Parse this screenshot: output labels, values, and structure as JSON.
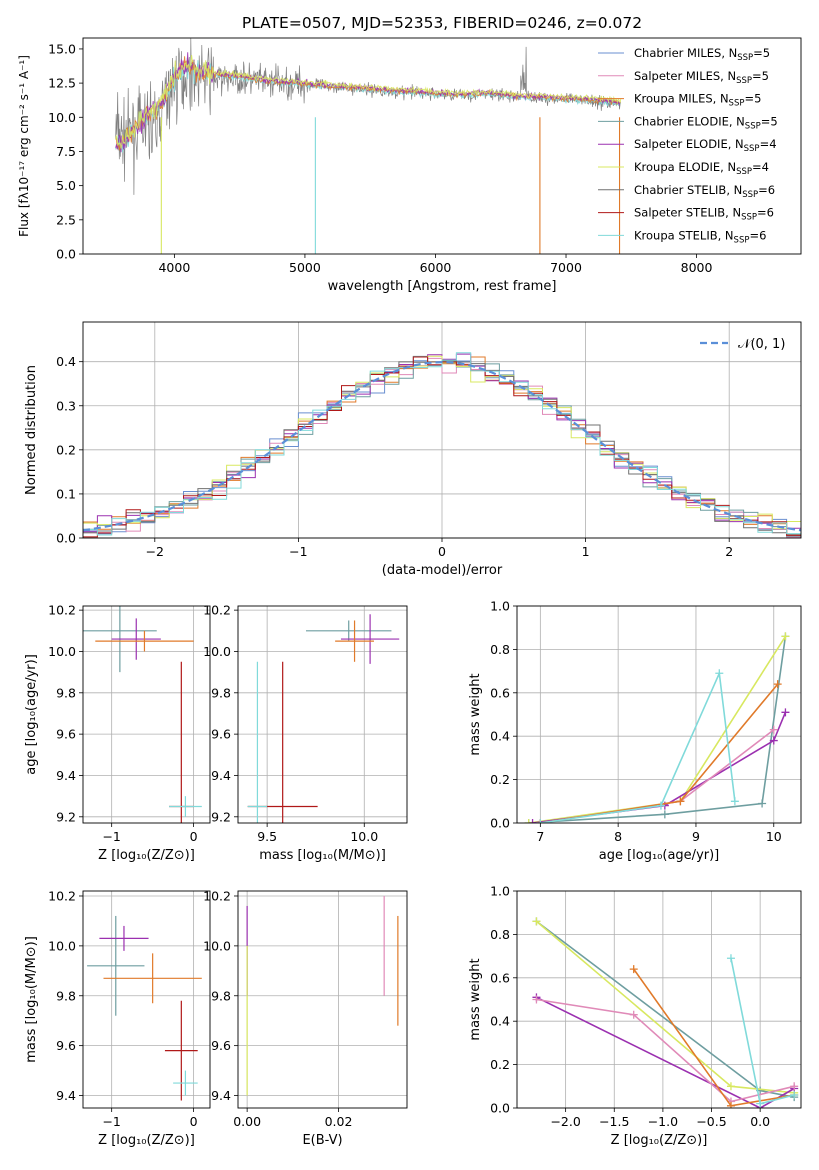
{
  "colors": [
    "#6a8fd0",
    "#e08ab8",
    "#e07a2a",
    "#6e9ea0",
    "#9b30b0",
    "#d8e860",
    "#707070",
    "#b01818",
    "#80dada"
  ],
  "chart_data": [
    {
      "type": "line",
      "title": "PLATE=0507, MJD=52353, FIBERID=0246, z=0.072",
      "xlabel": "wavelength [Angstrom, rest frame]",
      "ylabel": "Flux [fλ10⁻¹⁷ erg cm⁻² s⁻¹ A⁻¹]",
      "xlim": [
        3300,
        8800
      ],
      "ylim": [
        0,
        15.8
      ],
      "xticks": [
        "4000",
        "5000",
        "6000",
        "7000",
        "8000"
      ],
      "xtick_values": [
        4000,
        5000,
        6000,
        7000,
        8000
      ],
      "yticks": [
        "0.0",
        "2.5",
        "5.0",
        "7.5",
        "10.0",
        "12.5",
        "15.0"
      ],
      "ytick_values": [
        0,
        2.5,
        5,
        7.5,
        10,
        12.5,
        15
      ],
      "grid": false,
      "legend_position": "top-right",
      "legend": [
        {
          "label": "Chabrier MILES, N",
          "sub": "SSP",
          "tail": "=5"
        },
        {
          "label": "Salpeter MILES, N",
          "sub": "SSP",
          "tail": "=5"
        },
        {
          "label": "Kroupa MILES, N",
          "sub": "SSP",
          "tail": "=5"
        },
        {
          "label": "Chabrier ELODIE, N",
          "sub": "SSP",
          "tail": "=5"
        },
        {
          "label": "Salpeter ELODIE, N",
          "sub": "SSP",
          "tail": "=4"
        },
        {
          "label": "Kroupa ELODIE, N",
          "sub": "SSP",
          "tail": "=4"
        },
        {
          "label": "Chabrier STELIB, N",
          "sub": "SSP",
          "tail": "=6"
        },
        {
          "label": "Salpeter STELIB, N",
          "sub": "SSP",
          "tail": "=6"
        },
        {
          "label": "Kroupa STELIB, N",
          "sub": "SSP",
          "tail": "=6"
        }
      ],
      "series": [
        {
          "name": "data",
          "color": "#808080",
          "x": [
            3550,
            3600,
            3700,
            3800,
            3900,
            4000,
            4100,
            4200,
            4300,
            4500,
            4700,
            5000,
            5200,
            5500,
            5800,
            6000,
            6200,
            6400,
            6600,
            6800,
            7000,
            7200,
            7400
          ],
          "y": [
            9.0,
            8.5,
            9.0,
            9.5,
            10.5,
            12.5,
            13.3,
            13.0,
            12.8,
            12.8,
            12.6,
            12.4,
            12.3,
            12.0,
            11.8,
            11.7,
            11.6,
            11.7,
            11.5,
            11.4,
            11.3,
            11.2,
            11.0
          ]
        },
        {
          "name": "model",
          "color": "#80dada",
          "x": [
            3550,
            3600,
            3700,
            3800,
            3900,
            4000,
            4100,
            4200,
            4300,
            4500,
            4700,
            5000,
            5200,
            5500,
            5800,
            6000,
            6200,
            6400,
            6600,
            6800,
            7000,
            7200,
            7400
          ],
          "y": [
            8.3,
            8.0,
            9.3,
            10.3,
            11.0,
            13.0,
            13.8,
            13.3,
            13.2,
            13.0,
            12.7,
            12.5,
            12.3,
            12.1,
            11.9,
            11.8,
            11.7,
            11.8,
            11.6,
            11.5,
            11.4,
            11.3,
            11.1
          ]
        }
      ]
    },
    {
      "type": "line",
      "xlabel": "(data-model)/error",
      "ylabel": "Normed distribution",
      "xlim": [
        -2.5,
        2.5
      ],
      "ylim": [
        0,
        0.49
      ],
      "xticks": [
        "−2",
        "−1",
        "0",
        "1",
        "2"
      ],
      "xtick_values": [
        -2,
        -1,
        0,
        1,
        2
      ],
      "yticks": [
        "0.0",
        "0.1",
        "0.2",
        "0.3",
        "0.4"
      ],
      "ytick_values": [
        0,
        0.1,
        0.2,
        0.3,
        0.4
      ],
      "grid": true,
      "legend_position": "top-right",
      "legend": [
        "𝒩(0, 1)"
      ],
      "series": [
        {
          "name": "𝒩(0, 1)",
          "color": "#5a8fd8",
          "x": [
            -2.5,
            -2.0,
            -1.5,
            -1.0,
            -0.5,
            0.0,
            0.5,
            1.0,
            1.5,
            2.0,
            2.5
          ],
          "y": [
            0.018,
            0.054,
            0.13,
            0.242,
            0.352,
            0.399,
            0.352,
            0.242,
            0.13,
            0.054,
            0.018
          ]
        }
      ]
    },
    {
      "type": "scatter",
      "xlabel": "Z [log₁₀(Z/Z⊙)]",
      "ylabel": "age  [log₁₀(age/yr)]",
      "xlim": [
        -1.35,
        0.2
      ],
      "ylim": [
        9.17,
        10.22
      ],
      "xticks": [
        "−1",
        "0"
      ],
      "xtick_values": [
        -1,
        0
      ],
      "yticks": [
        "9.2",
        "9.4",
        "9.6",
        "9.8",
        "10.0",
        "10.2"
      ],
      "ytick_values": [
        9.2,
        9.4,
        9.6,
        9.8,
        10.0,
        10.2
      ],
      "grid": true,
      "points": [
        {
          "x": -0.9,
          "y": 10.1,
          "xerr": 0.45,
          "yerr": 0.2,
          "color": "#6e9ea0"
        },
        {
          "x": -0.7,
          "y": 10.06,
          "xerr": 0.3,
          "yerr": 0.1,
          "color": "#9b30b0"
        },
        {
          "x": -0.6,
          "y": 10.05,
          "xerr": 0.6,
          "yerr": 0.05,
          "color": "#e07a2a"
        },
        {
          "x": -0.15,
          "y": 9.25,
          "xerr": 0.15,
          "yerr": 0.7,
          "color": "#b01818"
        },
        {
          "x": -0.1,
          "y": 9.25,
          "xerr": 0.2,
          "yerr": 0.05,
          "color": "#80dada"
        }
      ]
    },
    {
      "type": "scatter",
      "xlabel": "mass [log₁₀(M/M⊙)]",
      "ylabel": "",
      "xlim": [
        9.35,
        10.22
      ],
      "ylim": [
        9.17,
        10.22
      ],
      "xticks": [
        "9.5",
        "10.0"
      ],
      "xtick_values": [
        9.5,
        10.0
      ],
      "yticks": [
        "9.2",
        "9.4",
        "9.6",
        "9.8",
        "10.0",
        "10.2"
      ],
      "ytick_values": [
        9.2,
        9.4,
        9.6,
        9.8,
        10.0,
        10.2
      ],
      "grid": true,
      "points": [
        {
          "x": 9.92,
          "y": 10.1,
          "xerr": 0.22,
          "yerr": 0.05,
          "color": "#6e9ea0"
        },
        {
          "x": 10.03,
          "y": 10.06,
          "xerr": 0.15,
          "yerr": 0.12,
          "color": "#9b30b0"
        },
        {
          "x": 9.95,
          "y": 10.05,
          "xerr": 0.1,
          "yerr": 0.1,
          "color": "#e07a2a"
        },
        {
          "x": 9.58,
          "y": 9.25,
          "xerr": 0.18,
          "yerr": 0.7,
          "color": "#b01818"
        },
        {
          "x": 9.45,
          "y": 9.25,
          "xerr": 0.05,
          "yerr": 0.7,
          "color": "#80dada"
        }
      ]
    },
    {
      "type": "line",
      "xlabel": "age  [log₁₀(age/yr)]",
      "ylabel": "mass weight",
      "xlim": [
        6.7,
        10.35
      ],
      "ylim": [
        0,
        1.0
      ],
      "xticks": [
        "7",
        "8",
        "9",
        "10"
      ],
      "xtick_values": [
        7,
        8,
        9,
        10
      ],
      "yticks": [
        "0.0",
        "0.2",
        "0.4",
        "0.6",
        "0.8",
        "1.0"
      ],
      "ytick_values": [
        0,
        0.2,
        0.4,
        0.6,
        0.8,
        1.0
      ],
      "grid": true,
      "series": [
        {
          "color": "#6e9ea0",
          "x": [
            6.85,
            8.6,
            9.85,
            10.15
          ],
          "y": [
            0.0,
            0.04,
            0.09,
            0.86
          ]
        },
        {
          "color": "#d8e860",
          "x": [
            6.85,
            8.8,
            10.15
          ],
          "y": [
            0.0,
            0.1,
            0.86
          ]
        },
        {
          "color": "#9b30b0",
          "x": [
            6.9,
            8.6,
            10.0,
            10.15
          ],
          "y": [
            0.0,
            0.08,
            0.38,
            0.51
          ]
        },
        {
          "color": "#e08ab8",
          "x": [
            7.0,
            8.8,
            10.0
          ],
          "y": [
            0.0,
            0.1,
            0.43
          ]
        },
        {
          "color": "#e07a2a",
          "x": [
            7.0,
            8.8,
            10.05
          ],
          "y": [
            0.0,
            0.1,
            0.64
          ]
        },
        {
          "color": "#80dada",
          "x": [
            7.0,
            8.55,
            9.3,
            9.5
          ],
          "y": [
            0.0,
            0.08,
            0.69,
            0.1
          ]
        }
      ]
    },
    {
      "type": "scatter",
      "xlabel": "Z [log₁₀(Z/Z⊙)]",
      "ylabel": "mass [log₁₀(M/M⊙)]",
      "xlim": [
        -1.35,
        0.2
      ],
      "ylim": [
        9.35,
        10.22
      ],
      "xticks": [
        "−1",
        "0"
      ],
      "xtick_values": [
        -1,
        0
      ],
      "yticks": [
        "9.4",
        "9.6",
        "9.8",
        "10.0",
        "10.2"
      ],
      "ytick_values": [
        9.4,
        9.6,
        9.8,
        10.0,
        10.2
      ],
      "grid": true,
      "points": [
        {
          "x": -0.95,
          "y": 9.92,
          "xerr": 0.35,
          "yerr": 0.2,
          "color": "#6e9ea0"
        },
        {
          "x": -0.85,
          "y": 10.03,
          "xerr": 0.3,
          "yerr": 0.05,
          "color": "#9b30b0"
        },
        {
          "x": -0.5,
          "y": 9.87,
          "xerr": 0.6,
          "yerr": 0.1,
          "color": "#e07a2a"
        },
        {
          "x": -0.15,
          "y": 9.58,
          "xerr": 0.2,
          "yerr": 0.2,
          "color": "#b01818"
        },
        {
          "x": -0.1,
          "y": 9.45,
          "xerr": 0.15,
          "yerr": 0.05,
          "color": "#80dada"
        }
      ]
    },
    {
      "type": "scatter",
      "xlabel": "E(B-V)",
      "ylabel": "",
      "xlim": [
        -0.002,
        0.035
      ],
      "ylim": [
        9.35,
        10.22
      ],
      "xticks": [
        "0.00",
        "0.02"
      ],
      "xtick_values": [
        0.0,
        0.02
      ],
      "yticks": [
        "9.4",
        "9.6",
        "9.8",
        "10.0",
        "10.2"
      ],
      "ytick_values": [
        9.4,
        9.6,
        9.8,
        10.0,
        10.2
      ],
      "grid": true,
      "points": [
        {
          "x": 0.0,
          "y": 9.98,
          "xerr": 0,
          "yerr": 0.18,
          "color": "#9b30b0"
        },
        {
          "x": 0.0,
          "y": 9.7,
          "xerr": 0,
          "yerr": 0.3,
          "color": "#d8e860"
        },
        {
          "x": 0.03,
          "y": 10.0,
          "xerr": 0,
          "yerr": 0.2,
          "color": "#e08ab8"
        },
        {
          "x": 0.033,
          "y": 9.9,
          "xerr": 0,
          "yerr": 0.22,
          "color": "#e07a2a"
        }
      ]
    },
    {
      "type": "line",
      "xlabel": "Z [log₁₀(Z/Z⊙)]",
      "ylabel": "mass weight",
      "xlim": [
        -2.5,
        0.42
      ],
      "ylim": [
        0,
        1.0
      ],
      "xticks": [
        "−2.0",
        "−1.5",
        "−1.0",
        "−0.5",
        "0.0"
      ],
      "xtick_values": [
        -2.0,
        -1.5,
        -1.0,
        -0.5,
        0.0
      ],
      "yticks": [
        "0.0",
        "0.2",
        "0.4",
        "0.6",
        "0.8",
        "1.0"
      ],
      "ytick_values": [
        0,
        0.2,
        0.4,
        0.6,
        0.8,
        1.0
      ],
      "grid": true,
      "series": [
        {
          "color": "#6e9ea0",
          "x": [
            -2.3,
            0.0,
            0.35
          ],
          "y": [
            0.86,
            0.08,
            0.05
          ]
        },
        {
          "color": "#d8e860",
          "x": [
            -2.3,
            -0.3,
            0.35
          ],
          "y": [
            0.86,
            0.1,
            0.07
          ]
        },
        {
          "color": "#9b30b0",
          "x": [
            -2.3,
            0.0,
            0.35
          ],
          "y": [
            0.51,
            0.0,
            0.09
          ]
        },
        {
          "color": "#e08ab8",
          "x": [
            -2.3,
            -1.3,
            -0.3,
            0.35
          ],
          "y": [
            0.5,
            0.43,
            0.03,
            0.1
          ]
        },
        {
          "color": "#e07a2a",
          "x": [
            -1.3,
            -0.3,
            0.35
          ],
          "y": [
            0.64,
            0.01,
            0.06
          ]
        },
        {
          "color": "#80dada",
          "x": [
            -0.3,
            0.0,
            0.35
          ],
          "y": [
            0.69,
            0.02,
            0.06
          ]
        }
      ]
    }
  ]
}
